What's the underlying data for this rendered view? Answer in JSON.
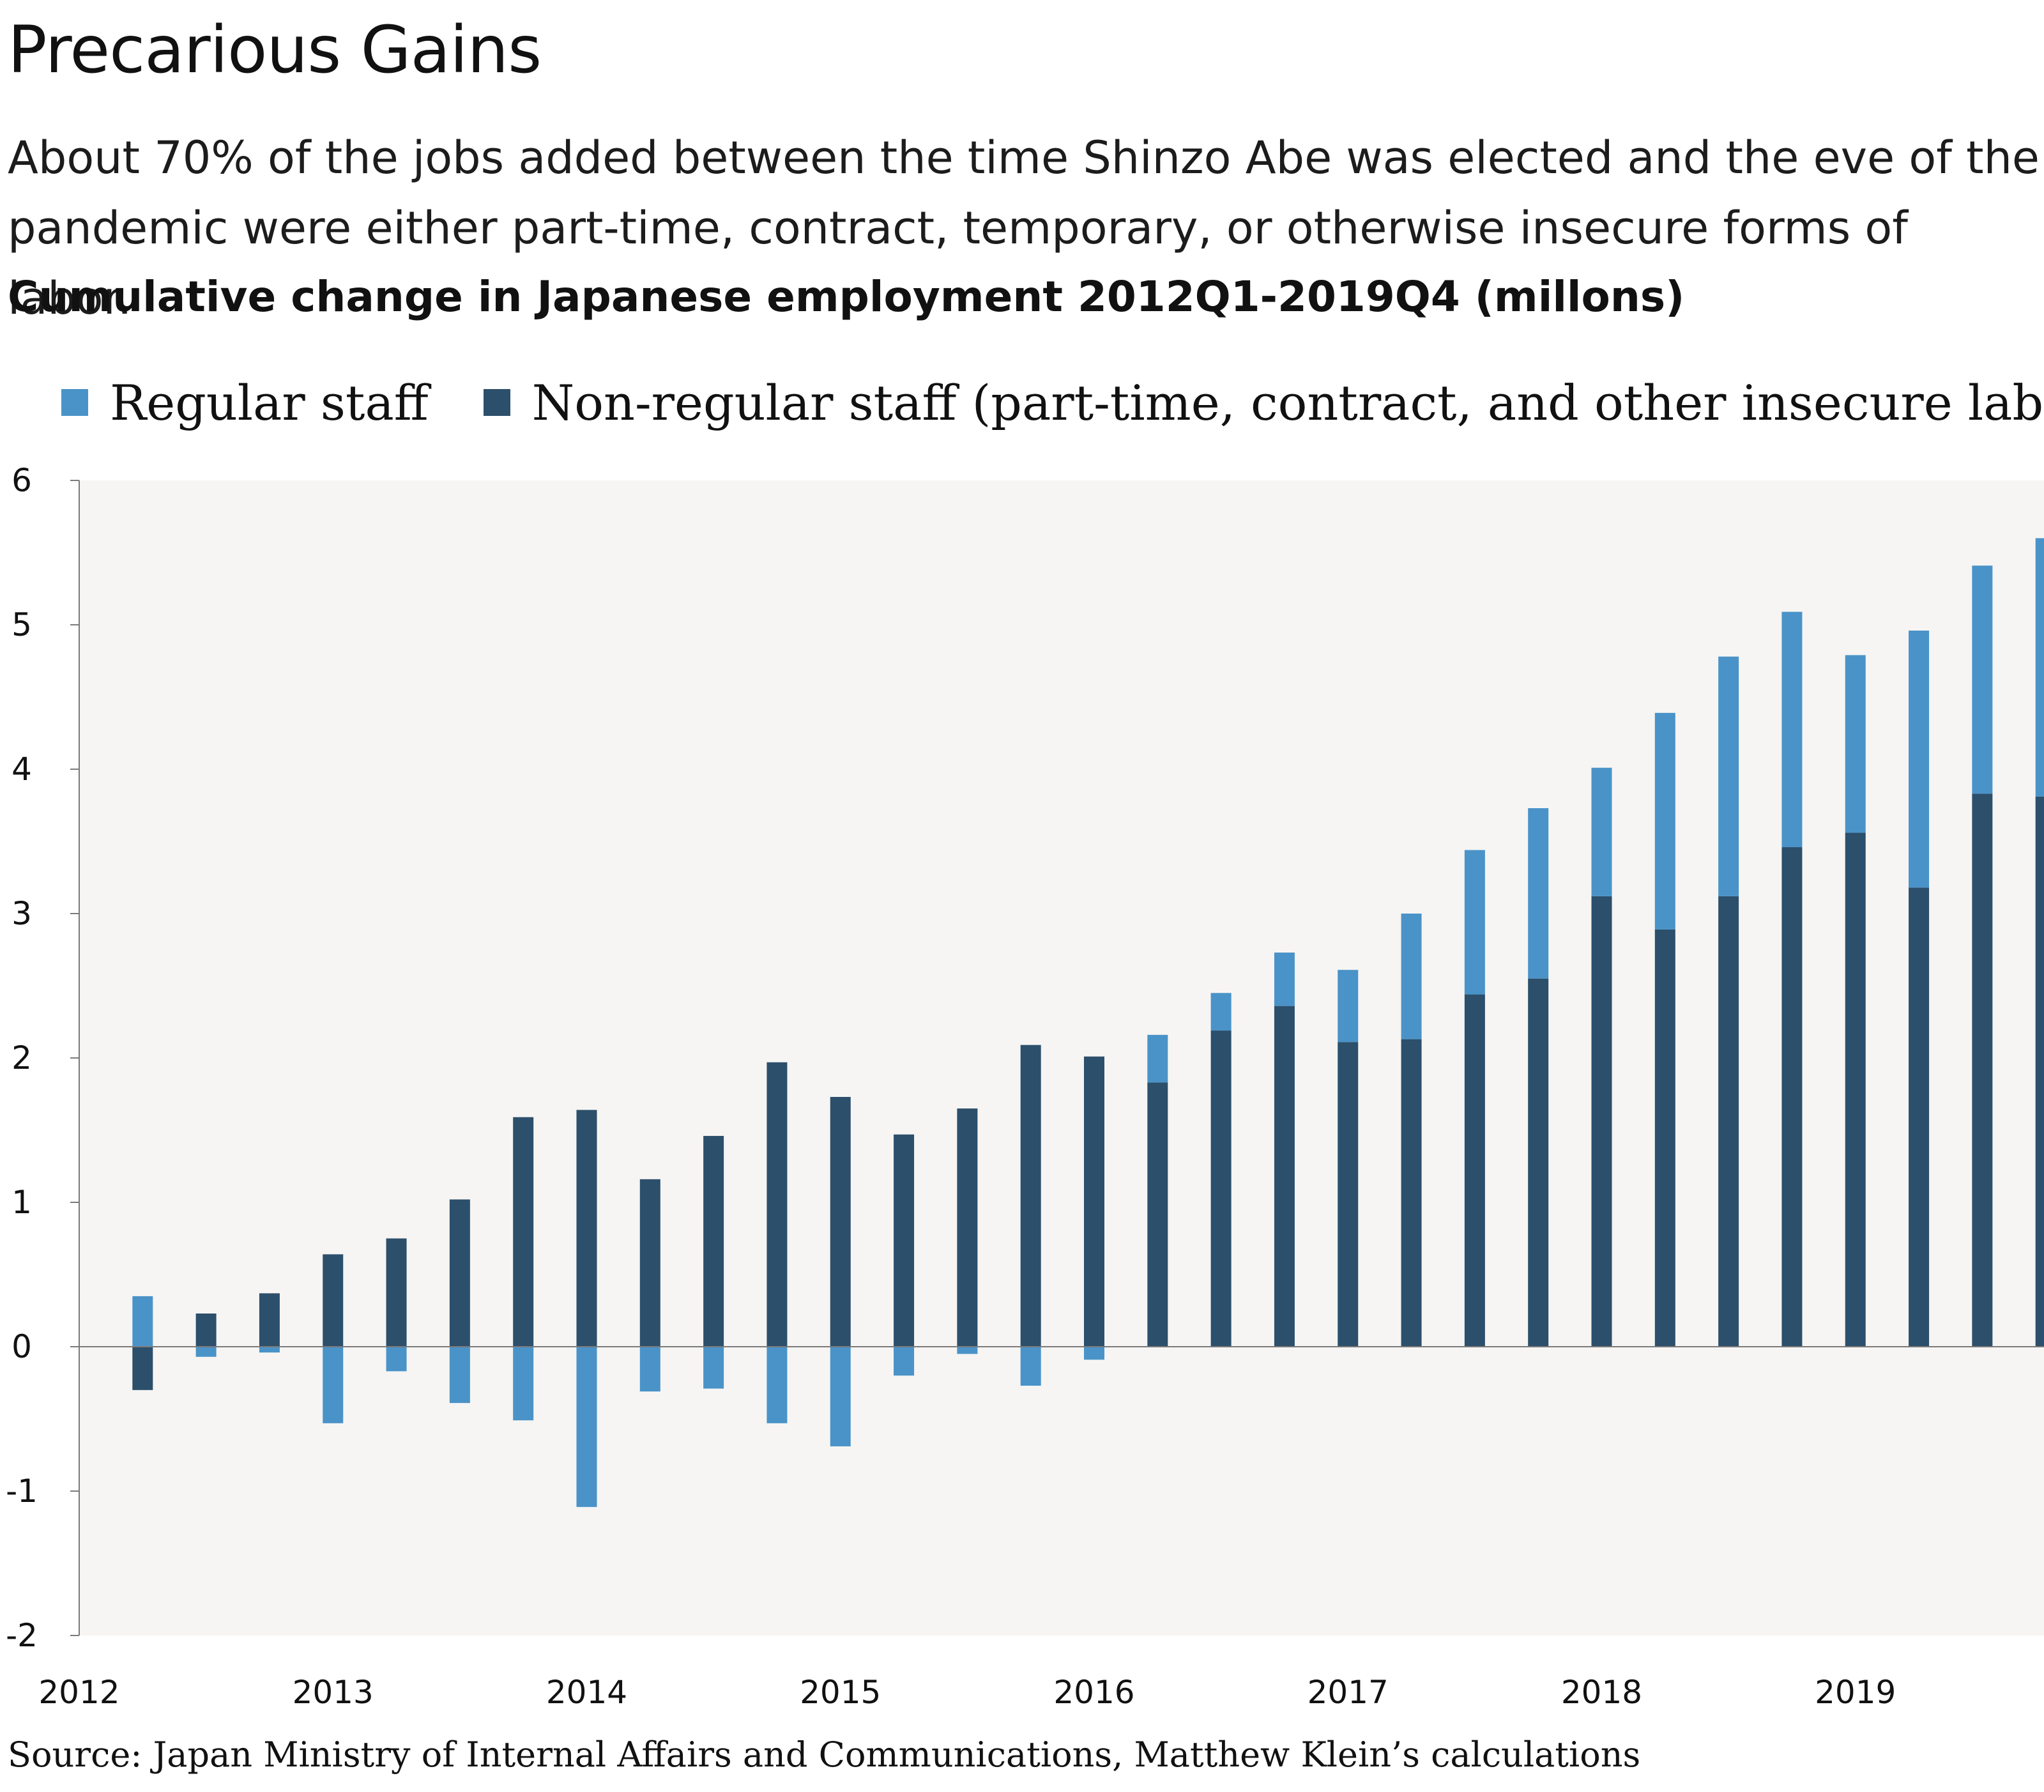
{
  "title": "Precarious Gains",
  "subtitle": "About 70% of the jobs added between the time Shinzo Abe was elected and the eve of the pandemic were either part-time, contract, temporary, or otherwise insecure forms of labor.",
  "source": "Source: Japan Ministry of Internal Affairs and Communications, Matthew Klein’s calculations",
  "colors": {
    "regular": "#4a93c8",
    "non_regular": "#2c4f6b",
    "plot_background": "#f6f5f3",
    "axis": "#7a7a7a"
  },
  "legend": [
    {
      "label": "Regular staff",
      "color": "#4a93c8"
    },
    {
      "label": "Non-regular staff (part-time, contract, and other insecure labor)",
      "color": "#2c4f6b"
    }
  ],
  "chart_data": {
    "type": "bar",
    "stacked": true,
    "title": "Cumulative change in Japanese employment 2012Q1-2019Q4 (millons)",
    "xlabel": "",
    "ylabel": "",
    "ylim": [
      -2,
      6
    ],
    "yticks": [
      6,
      5,
      4,
      3,
      2,
      1,
      0,
      -1,
      -2
    ],
    "ytick_labels": [
      "6",
      "5",
      "4",
      "3",
      "2",
      "1",
      "0",
      "-1",
      "-2"
    ],
    "xticks": [
      "2012",
      "2013",
      "2014",
      "2015",
      "2016",
      "2017",
      "2018",
      "2019"
    ],
    "x_start": 2012.0,
    "x_end": 2020.0,
    "quarters": [
      2012.25,
      2012.5,
      2012.75,
      2013.0,
      2013.25,
      2013.5,
      2013.75,
      2014.0,
      2014.25,
      2014.5,
      2014.75,
      2015.0,
      2015.25,
      2015.5,
      2015.75,
      2016.0,
      2016.25,
      2016.5,
      2016.75,
      2017.0,
      2017.25,
      2017.5,
      2017.75,
      2018.0,
      2018.25,
      2018.5,
      2018.75,
      2019.0,
      2019.25,
      2019.5,
      2019.75
    ],
    "grid": false,
    "legend_position": "top",
    "series": [
      {
        "name": "Non-regular staff (part-time, contract, and other insecure labor)",
        "values": [
          -0.3,
          0.23,
          0.37,
          0.64,
          0.75,
          1.02,
          1.59,
          1.64,
          1.16,
          1.46,
          1.97,
          1.73,
          1.47,
          1.65,
          2.09,
          2.01,
          1.83,
          2.19,
          2.36,
          2.11,
          2.13,
          2.44,
          2.55,
          3.12,
          2.89,
          3.12,
          3.46,
          3.56,
          3.18,
          3.83,
          3.81
        ]
      },
      {
        "name": "Regular staff",
        "values": [
          0.35,
          -0.07,
          -0.04,
          -0.53,
          -0.17,
          -0.39,
          -0.51,
          -1.11,
          -0.31,
          -0.29,
          -0.53,
          -0.69,
          -0.2,
          -0.05,
          -0.27,
          -0.09,
          0.33,
          0.26,
          0.37,
          0.5,
          0.87,
          1.0,
          1.18,
          0.89,
          1.5,
          1.66,
          1.63,
          1.23,
          1.78,
          1.58,
          1.79
        ]
      }
    ]
  }
}
